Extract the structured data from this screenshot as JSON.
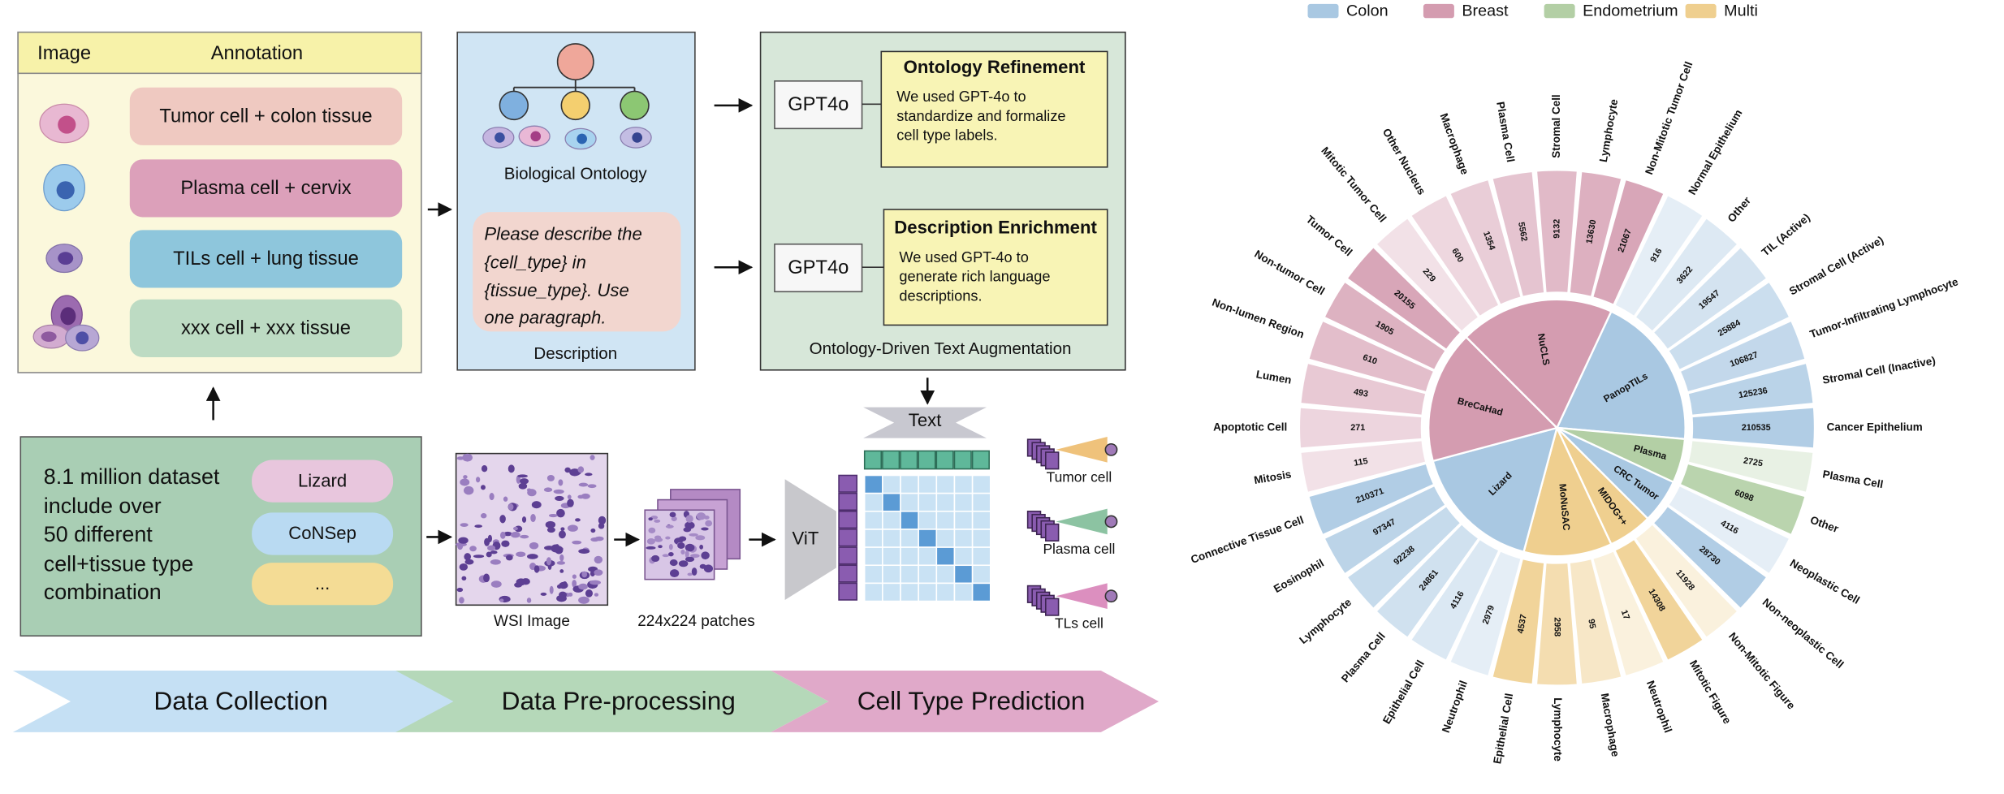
{
  "pipeline": {
    "annotation": {
      "header": [
        "Image",
        "Annotation"
      ],
      "rows": [
        "Tumor cell + colon tissue",
        "Plasma cell + cervix",
        "TILs cell + lung tissue",
        "xxx cell + xxx tissue"
      ]
    },
    "ontology": {
      "label": "Biological Ontology",
      "prompt": [
        "Please describe the",
        "{cell_type} in",
        "{tissue_type}. Use",
        "one paragraph."
      ],
      "caption": "Description"
    },
    "augmentation": {
      "steps": [
        {
          "model": "GPT4o",
          "title": "Ontology Refinement",
          "text": [
            "We used GPT-4o to",
            "standardize and formalize",
            "cell type labels."
          ]
        },
        {
          "model": "GPT4o",
          "title": "Description Enrichment",
          "text": [
            "We used GPT-4o to",
            "generate rich language",
            "descriptions."
          ]
        }
      ],
      "caption": "Ontology-Driven Text Augmentation"
    },
    "dataset": {
      "lines": [
        "8.1 million dataset",
        "include over",
        "50 different",
        "cell+tissue type",
        "combination"
      ],
      "sources": [
        "Lizard",
        "CoNSep",
        "..."
      ]
    },
    "wsi_caption": "WSI Image",
    "patches_caption": "224x224 patches",
    "image_encoder": "ViT",
    "text_encoder": "Text",
    "outputs": [
      "Tumor cell",
      "Plasma cell",
      "TLs cell"
    ],
    "stages": [
      "Data Collection",
      "Data Pre-processing",
      "Cell Type Prediction"
    ]
  },
  "chart_data": {
    "type": "sunburst",
    "legend": [
      {
        "name": "Colon",
        "color": "#a9c8e2"
      },
      {
        "name": "Breast",
        "color": "#d49cb0"
      },
      {
        "name": "Endometrium",
        "color": "#b3cfa5"
      },
      {
        "name": "Multi",
        "color": "#efcf8f"
      }
    ],
    "datasets": [
      {
        "name": "PanopTILs",
        "color": "#a9c8e2",
        "cells": [
          {
            "label": "Normal Epithelium",
            "count": 916
          },
          {
            "label": "Other",
            "count": 3622
          },
          {
            "label": "TIL (Active)",
            "count": 19547
          },
          {
            "label": "Stromal Cell (Active)",
            "count": 25884
          },
          {
            "label": "Tumor-Infiltrating Lymphocyte",
            "count": 106827
          },
          {
            "label": "Stromal Cell (Inactive)",
            "count": 125236
          },
          {
            "label": "Cancer Epithelium",
            "count": 210535
          }
        ]
      },
      {
        "name": "Plasma",
        "color": "#b3cfa5",
        "cells": [
          {
            "label": "Plasma Cell",
            "count": 2725
          },
          {
            "label": "Other",
            "count": 6098
          }
        ]
      },
      {
        "name": "CRC Tumor",
        "color": "#a9c8e2",
        "cells": [
          {
            "label": "Neoplastic Cell",
            "count": 4116
          },
          {
            "label": "Non-neoplastic Cell",
            "count": 28730
          }
        ]
      },
      {
        "name": "MIDOG++",
        "color": "#efcf8f",
        "cells": [
          {
            "label": "Non-Mitotic Figure",
            "count": 11928
          },
          {
            "label": "Mitotic Figure",
            "count": 14308
          }
        ]
      },
      {
        "name": "MoNuSAC",
        "color": "#efcf8f",
        "cells": [
          {
            "label": "Neutrophil",
            "count": 17
          },
          {
            "label": "Macrophage",
            "count": 95
          },
          {
            "label": "Lymphocyte",
            "count": 2958
          },
          {
            "label": "Epithelial Cell",
            "count": 4537
          }
        ]
      },
      {
        "name": "Lizard",
        "color": "#a9c8e2",
        "cells": [
          {
            "label": "Neutrophil",
            "count": 2979
          },
          {
            "label": "Epithelial Cell",
            "count": 4116
          },
          {
            "label": "Plasma Cell",
            "count": 24861
          },
          {
            "label": "Lymphocyte",
            "count": 92238
          },
          {
            "label": "Eosinophil",
            "count": 97347
          },
          {
            "label": "Connective Tissue Cell",
            "count": 210371
          }
        ]
      },
      {
        "name": "BreCaHad",
        "color": "#d49cb0",
        "cells": [
          {
            "label": "Mitosis",
            "count": 115
          },
          {
            "label": "Apoptotic Cell",
            "count": 271
          },
          {
            "label": "Lumen",
            "count": 493
          },
          {
            "label": "Non-lumen Region",
            "count": 610
          },
          {
            "label": "Non-tumor Cell",
            "count": 1905
          },
          {
            "label": "Tumor Cell",
            "count": 20155
          }
        ]
      },
      {
        "name": "NuCLS",
        "color": "#d49cb0",
        "cells": [
          {
            "label": "Mitotic Tumor Cell",
            "count": 229
          },
          {
            "label": "Other Nucleus",
            "count": 600
          },
          {
            "label": "Macrophage",
            "count": 1354
          },
          {
            "label": "Plasma Cell",
            "count": 5562
          },
          {
            "label": "Stromal Cell",
            "count": 9132
          },
          {
            "label": "Lymphocyte",
            "count": 13630
          },
          {
            "label": "Non-Mitotic Tumor Cell",
            "count": 21067
          }
        ]
      }
    ]
  }
}
